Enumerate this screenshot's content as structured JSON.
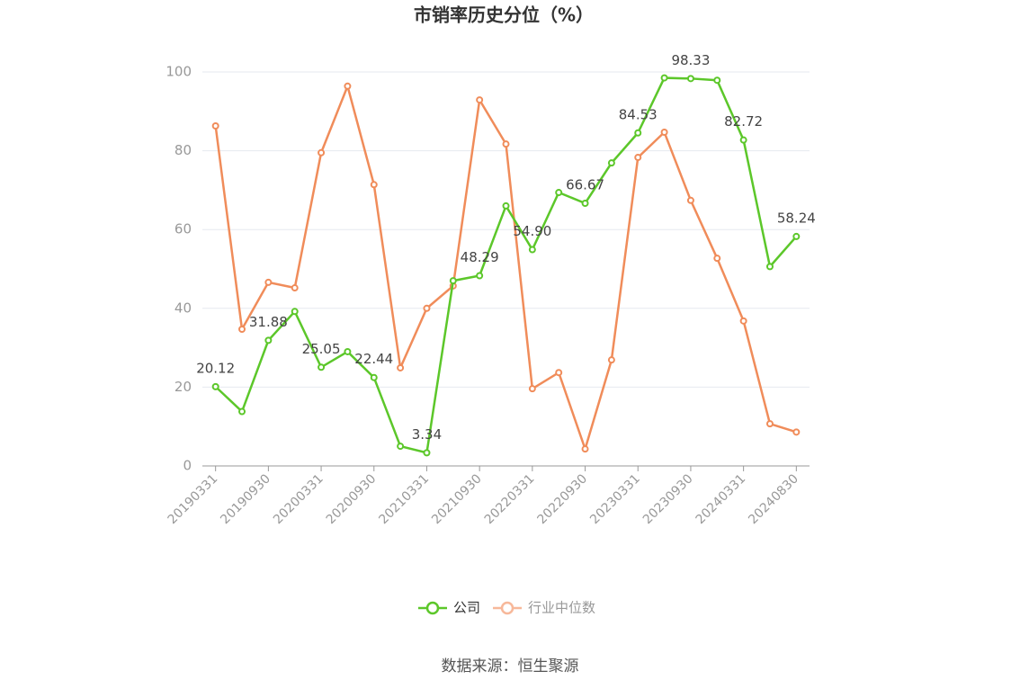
{
  "chart_data": {
    "type": "line",
    "title": "市销率历史分位（%）",
    "categories": [
      "20190331",
      null,
      "20190930",
      null,
      "20200331",
      null,
      "20200930",
      null,
      "20210331",
      null,
      "20210930",
      null,
      "20220331",
      null,
      "20220930",
      null,
      "20230331",
      null,
      "20230930",
      null,
      "20240331",
      null,
      "20240830"
    ],
    "series": [
      {
        "name": "公司",
        "color": "#5cc72a",
        "values": [
          20.12,
          13.8,
          31.88,
          39.2,
          25.05,
          29.0,
          22.44,
          5.0,
          3.34,
          47.0,
          48.29,
          66.0,
          54.9,
          69.4,
          66.67,
          76.9,
          84.53,
          98.5,
          98.33,
          97.9,
          82.72,
          50.6,
          58.24
        ],
        "value_labels": [
          "20.12",
          null,
          "31.88",
          null,
          "25.05",
          null,
          "22.44",
          null,
          "3.34",
          null,
          "48.29",
          null,
          "54.90",
          null,
          "66.67",
          null,
          "84.53",
          null,
          "98.33",
          null,
          "82.72",
          null,
          "58.24"
        ]
      },
      {
        "name": "行业中位数",
        "color": "#f08c5a",
        "values": [
          86.3,
          34.7,
          46.6,
          45.2,
          79.5,
          96.4,
          71.4,
          24.9,
          40.0,
          45.7,
          92.9,
          81.7,
          19.6,
          23.7,
          4.3,
          26.9,
          78.3,
          84.7,
          67.4,
          52.7,
          36.8,
          10.7,
          8.6
        ]
      }
    ],
    "ylim": [
      0,
      100
    ],
    "yticks": [
      0,
      20,
      40,
      60,
      80,
      100
    ],
    "grid": true,
    "source": "数据来源：恒生聚源"
  }
}
